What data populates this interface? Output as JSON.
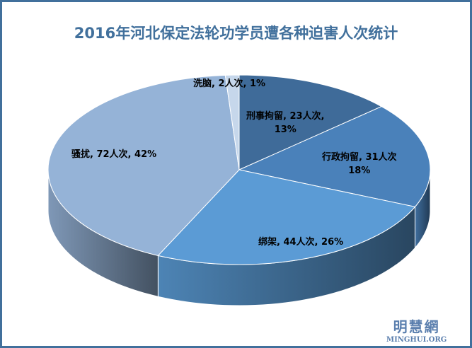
{
  "chart_data": {
    "type": "pie",
    "style": "3d",
    "title": "2016年河北保定法轮功学员遭各种迫害人次统计",
    "categories": [
      "刑事拘留",
      "行政拘留",
      "绑架",
      "骚扰",
      "洗脑"
    ],
    "values": [
      23,
      31,
      44,
      72,
      2
    ],
    "percent": [
      13,
      18,
      26,
      42,
      1
    ],
    "labels": [
      "刑事拘留, 23人次,",
      "13%",
      "行政拘留, 31人次",
      "18%",
      "绑架, 44人次, 26%",
      "骚扰, 72人次, 42%",
      "洗脑, 2人次, 1%"
    ],
    "colors": [
      "#3f6b99",
      "#4a81ba",
      "#5b9bd5",
      "#95b3d7",
      "#c6d7eb"
    ],
    "legend": "none"
  },
  "logo": {
    "cn": "明慧網",
    "en": "MINGHUI.ORG"
  }
}
